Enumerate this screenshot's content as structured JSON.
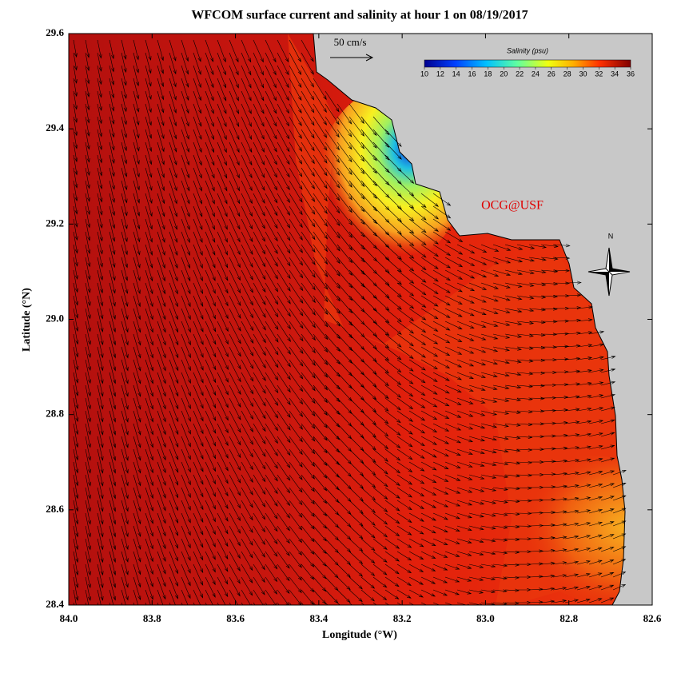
{
  "map": {
    "title": "WFCOM surface current and salinity at hour 1 on 08/19/2017",
    "x_label": "Longitude (°W)",
    "y_label": "Latitude (°N)",
    "xlim": [
      84.0,
      82.6
    ],
    "ylim": [
      28.4,
      29.6
    ],
    "xticks": [
      {
        "value": 84.0,
        "label": "84.0"
      },
      83.8,
      83.6,
      83.4,
      83.2,
      {
        "value": 83.0,
        "label": "83.0"
      },
      82.8,
      82.6
    ],
    "yticks": [
      28.4,
      28.6,
      28.8,
      {
        "value": 29.0,
        "label": "29.0"
      },
      29.2,
      29.4,
      29.6
    ],
    "scale_label": "50 cm/s",
    "credit": "OCG@USF",
    "north_label": "N",
    "colorbar": {
      "title": "Salinity (psu)",
      "range": [
        10,
        36
      ],
      "ticks": [
        10,
        12,
        14,
        16,
        18,
        20,
        22,
        24,
        26,
        28,
        30,
        32,
        34,
        36
      ]
    }
  }
}
